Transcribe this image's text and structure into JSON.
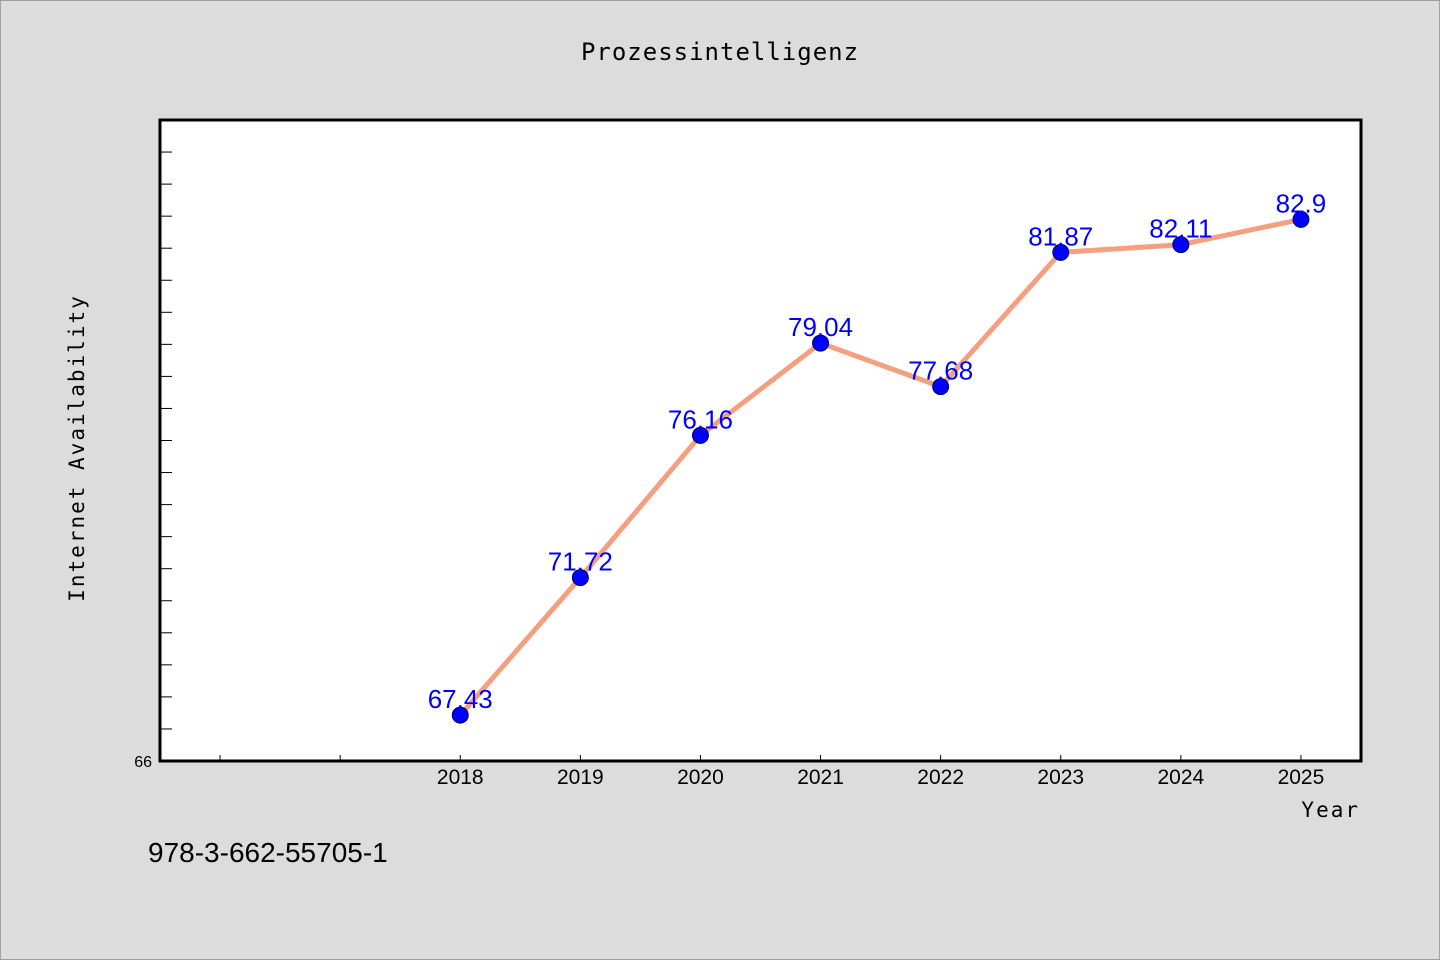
{
  "chart_data": {
    "type": "line",
    "title": "Prozessintelligenz",
    "xlabel": "Year",
    "ylabel": "Internet Availability",
    "categories": [
      "2018",
      "2019",
      "2020",
      "2021",
      "2022",
      "2023",
      "2024",
      "2025"
    ],
    "values": [
      67.43,
      71.72,
      76.16,
      79.04,
      77.68,
      81.87,
      82.11,
      82.9
    ],
    "data_labels": [
      "67.43",
      "71.72",
      "76.16",
      "79.04",
      "77.68",
      "81.87",
      "82.11",
      "82.9"
    ],
    "y_tick_labels": [
      "66"
    ],
    "ylim": [
      66,
      86
    ],
    "x_index_range": [
      -2.5,
      7.5
    ],
    "grid": false,
    "line_color": "#f4a080",
    "marker_color": "#0000ff",
    "label_color": "#0000ff"
  },
  "footer": {
    "isbn": "978-3-662-55705-1"
  }
}
